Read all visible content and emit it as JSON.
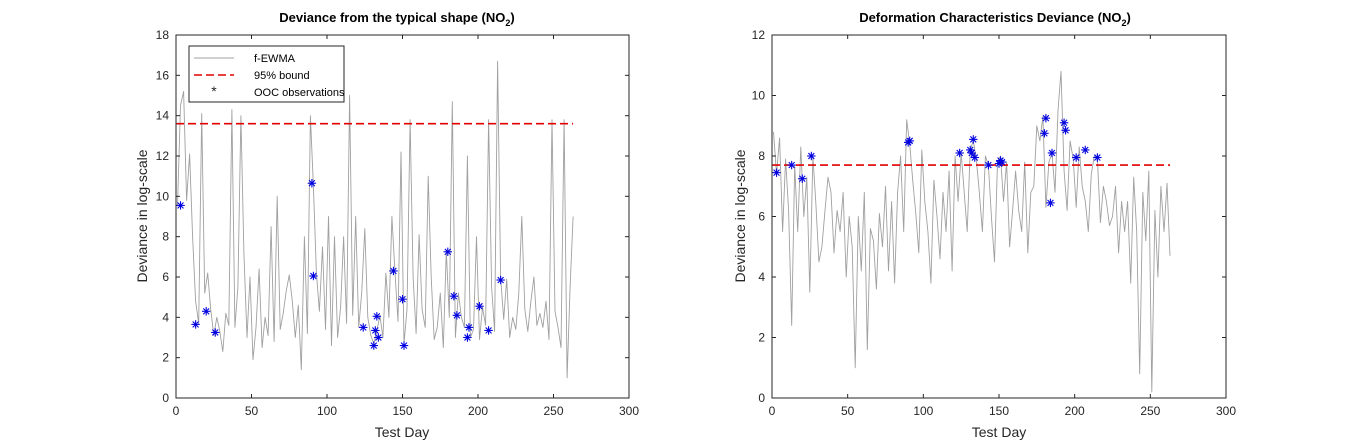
{
  "figure": {
    "background": "#ffffff"
  },
  "chart_data": [
    {
      "type": "line",
      "title": "Deviance from the typical shape (NO",
      "title_subscript": "2",
      "title_suffix": ")",
      "xlabel": "Test Day",
      "ylabel": "Deviance in log-scale",
      "xlim": [
        0,
        300
      ],
      "ylim": [
        0,
        18
      ],
      "xticks": [
        0,
        50,
        100,
        150,
        200,
        250,
        300
      ],
      "yticks": [
        0,
        2,
        4,
        6,
        8,
        10,
        12,
        14,
        16,
        18
      ],
      "grid": false,
      "legend": {
        "position": "top-left",
        "entries": [
          "f-EWMA",
          "95% bound",
          "OOC observations"
        ]
      },
      "series": [
        {
          "name": "f-EWMA",
          "kind": "line",
          "color": "#a0a0a0",
          "x": [
            1,
            3,
            5,
            7,
            9,
            11,
            13,
            15,
            17,
            19,
            21,
            23,
            25,
            27,
            29,
            31,
            33,
            35,
            37,
            39,
            41,
            43,
            45,
            47,
            49,
            51,
            53,
            55,
            57,
            59,
            61,
            63,
            65,
            67,
            69,
            71,
            73,
            75,
            77,
            79,
            81,
            83,
            85,
            87,
            89,
            91,
            93,
            95,
            97,
            99,
            101,
            103,
            105,
            107,
            109,
            111,
            113,
            115,
            117,
            119,
            121,
            123,
            125,
            127,
            129,
            131,
            133,
            135,
            137,
            139,
            141,
            143,
            145,
            147,
            149,
            151,
            153,
            155,
            157,
            159,
            161,
            163,
            165,
            167,
            169,
            171,
            173,
            175,
            177,
            179,
            181,
            183,
            185,
            187,
            189,
            191,
            193,
            195,
            197,
            199,
            201,
            203,
            205,
            207,
            209,
            211,
            213,
            215,
            217,
            219,
            221,
            223,
            225,
            227,
            229,
            231,
            233,
            235,
            237,
            239,
            241,
            243,
            245,
            247,
            249,
            251,
            253,
            255,
            257,
            259,
            261,
            263
          ],
          "values": [
            9.5,
            14.5,
            15.2,
            9.8,
            12.1,
            8.0,
            4.8,
            3.7,
            14.1,
            5.2,
            6.2,
            4.4,
            3.1,
            4.0,
            3.3,
            2.3,
            4.2,
            3.6,
            14.3,
            3.5,
            5.5,
            14.0,
            7.2,
            3.0,
            6.0,
            1.9,
            3.5,
            6.4,
            2.5,
            4.0,
            3.1,
            8.5,
            2.8,
            10.0,
            3.4,
            4.2,
            5.3,
            6.1,
            4.8,
            3.0,
            4.6,
            1.4,
            8.0,
            3.2,
            14.0,
            10.5,
            6.2,
            4.3,
            7.5,
            3.4,
            9.0,
            2.6,
            8.0,
            3.0,
            4.5,
            8.0,
            3.7,
            15.0,
            4.1,
            9.0,
            3.5,
            5.2,
            8.4,
            4.0,
            3.1,
            2.7,
            3.3,
            4.1,
            3.0,
            6.2,
            4.0,
            9.0,
            6.3,
            3.8,
            12.2,
            2.7,
            4.4,
            13.8,
            6.0,
            3.2,
            8.1,
            4.4,
            3.5,
            11.0,
            6.0,
            2.9,
            3.5,
            5.2,
            2.5,
            7.3,
            4.0,
            14.7,
            3.0,
            5.2,
            4.0,
            3.5,
            12.0,
            3.0,
            3.4,
            8.0,
            2.9,
            4.5,
            3.6,
            13.8,
            5.5,
            3.3,
            16.7,
            6.0,
            3.9,
            5.9,
            3.0,
            4.0,
            3.4,
            5.2,
            9.0,
            4.4,
            3.3,
            4.8,
            6.0,
            3.6,
            4.2,
            3.5,
            4.8,
            2.9,
            13.8,
            4.3,
            3.5,
            2.5,
            13.8,
            1.0,
            5.5,
            9.0
          ]
        },
        {
          "name": "95% bound",
          "kind": "hline",
          "color": "#e00000",
          "x": [
            0,
            263
          ],
          "value": 13.6
        },
        {
          "name": "OOC observations",
          "kind": "scatter",
          "color": "#0000e0",
          "x": [
            3,
            13,
            20,
            26,
            90,
            91,
            124,
            131,
            132,
            133,
            134,
            144,
            150,
            151,
            180,
            184,
            186,
            193,
            194,
            201,
            207,
            215
          ],
          "values": [
            9.55,
            3.65,
            4.3,
            3.25,
            10.65,
            6.05,
            3.5,
            2.6,
            3.35,
            4.05,
            3.0,
            6.3,
            4.9,
            2.6,
            7.25,
            5.05,
            4.1,
            3.0,
            3.5,
            4.55,
            3.35,
            5.85
          ]
        }
      ]
    },
    {
      "type": "line",
      "title": "Deformation Characteristics Deviance (NO",
      "title_subscript": "2",
      "title_suffix": ")",
      "xlabel": "Test Day",
      "ylabel": "Deviance in log-scale",
      "xlim": [
        0,
        300
      ],
      "ylim": [
        0,
        12
      ],
      "xticks": [
        0,
        50,
        100,
        150,
        200,
        250,
        300
      ],
      "yticks": [
        0,
        2,
        4,
        6,
        8,
        10,
        12
      ],
      "grid": false,
      "legend": null,
      "series": [
        {
          "name": "deviance",
          "kind": "line",
          "color": "#a0a0a0",
          "x": [
            1,
            3,
            5,
            7,
            9,
            11,
            13,
            15,
            17,
            19,
            21,
            23,
            25,
            27,
            29,
            31,
            33,
            35,
            37,
            39,
            41,
            43,
            45,
            47,
            49,
            51,
            53,
            55,
            57,
            59,
            61,
            63,
            65,
            67,
            69,
            71,
            73,
            75,
            77,
            79,
            81,
            83,
            85,
            87,
            89,
            91,
            93,
            95,
            97,
            99,
            101,
            103,
            105,
            107,
            109,
            111,
            113,
            115,
            117,
            119,
            121,
            123,
            125,
            127,
            129,
            131,
            133,
            135,
            137,
            139,
            141,
            143,
            145,
            147,
            149,
            151,
            153,
            155,
            157,
            159,
            161,
            163,
            165,
            167,
            169,
            171,
            173,
            175,
            177,
            179,
            181,
            183,
            185,
            187,
            189,
            191,
            193,
            195,
            197,
            199,
            201,
            203,
            205,
            207,
            209,
            211,
            213,
            215,
            217,
            219,
            221,
            223,
            225,
            227,
            229,
            231,
            233,
            235,
            237,
            239,
            241,
            243,
            245,
            247,
            249,
            251,
            253,
            255,
            257,
            259,
            261,
            263
          ],
          "values": [
            8.8,
            7.4,
            8.6,
            5.5,
            7.9,
            6.2,
            2.4,
            7.7,
            5.5,
            8.3,
            6.0,
            7.3,
            3.5,
            8.0,
            6.4,
            4.5,
            5.0,
            6.2,
            7.3,
            6.8,
            4.8,
            6.2,
            5.5,
            6.8,
            4.0,
            6.0,
            5.0,
            1.0,
            6.0,
            4.2,
            6.8,
            1.6,
            5.6,
            5.2,
            3.6,
            6.1,
            5.0,
            7.0,
            4.2,
            6.5,
            3.8,
            6.8,
            8.0,
            5.5,
            9.2,
            8.4,
            7.2,
            6.1,
            4.8,
            8.2,
            6.5,
            5.5,
            3.8,
            7.2,
            6.0,
            4.6,
            6.8,
            5.5,
            7.5,
            4.2,
            8.0,
            6.5,
            8.1,
            6.8,
            5.5,
            8.2,
            8.5,
            7.9,
            6.8,
            5.5,
            8.0,
            7.7,
            6.0,
            4.5,
            7.8,
            8.0,
            6.5,
            7.8,
            5.0,
            6.2,
            7.5,
            6.2,
            5.5,
            7.8,
            4.8,
            6.8,
            7.0,
            9.0,
            8.5,
            9.3,
            6.3,
            7.8,
            8.1,
            6.8,
            9.5,
            10.8,
            7.5,
            6.2,
            8.5,
            7.9,
            6.3,
            8.3,
            7.0,
            6.5,
            5.5,
            7.4,
            8.0,
            7.9,
            5.8,
            7.0,
            6.5,
            5.7,
            6.0,
            7.0,
            4.8,
            6.5,
            5.5,
            6.5,
            3.8,
            7.3,
            5.5,
            0.8,
            6.8,
            5.2,
            7.5,
            0.2,
            6.2,
            4.0,
            7.0,
            5.5,
            7.1,
            4.7
          ]
        },
        {
          "name": "95% bound",
          "kind": "hline",
          "color": "#e00000",
          "x": [
            0,
            263
          ],
          "value": 7.7
        },
        {
          "name": "OOC observations",
          "kind": "scatter",
          "color": "#0000e0",
          "x": [
            3,
            13,
            20,
            26,
            90,
            91,
            124,
            131,
            132,
            133,
            134,
            143,
            150,
            151,
            152,
            180,
            181,
            184,
            185,
            193,
            194,
            201,
            207,
            215
          ],
          "values": [
            7.45,
            7.7,
            7.25,
            8.0,
            8.45,
            8.5,
            8.1,
            8.2,
            8.1,
            8.55,
            7.95,
            7.7,
            7.75,
            7.85,
            7.8,
            8.75,
            9.25,
            6.45,
            8.1,
            9.1,
            8.85,
            7.95,
            8.2,
            7.95
          ]
        }
      ]
    }
  ]
}
